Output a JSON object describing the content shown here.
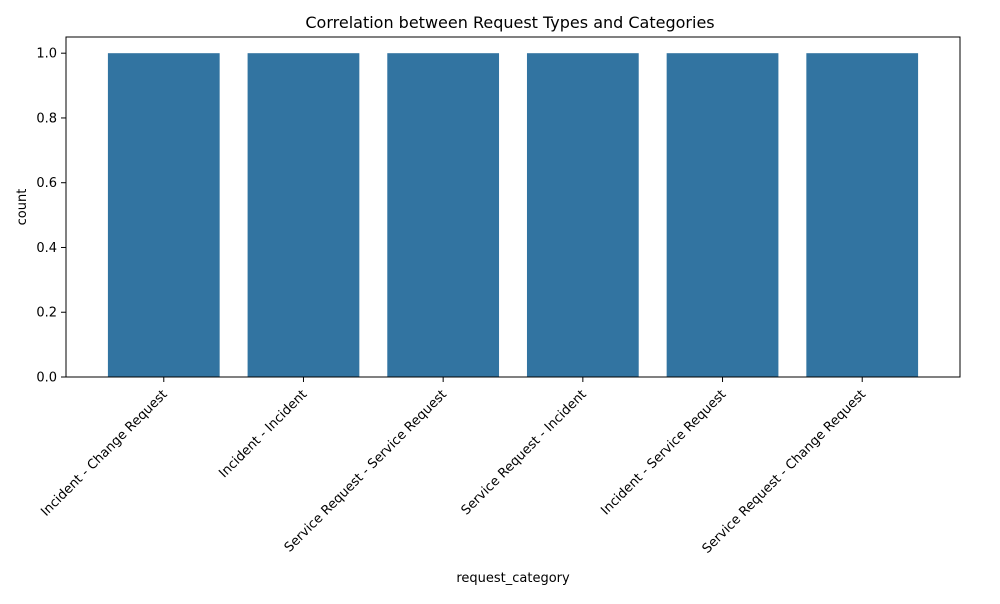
{
  "chart_data": {
    "type": "bar",
    "title": "Correlation between Request Types and Categories",
    "xlabel": "request_category",
    "ylabel": "count",
    "categories": [
      "Incident - Change Request",
      "Incident - Incident",
      "Service Request - Service Request",
      "Service Request - Incident",
      "Incident - Service Request",
      "Service Request - Change Request"
    ],
    "values": [
      1,
      1,
      1,
      1,
      1,
      1
    ],
    "ylim": [
      0,
      1.05
    ],
    "yticks": [
      "0.0",
      "0.2",
      "0.4",
      "0.6",
      "0.8",
      "1.0"
    ],
    "grid": false,
    "bar_color": "#3274a1"
  }
}
